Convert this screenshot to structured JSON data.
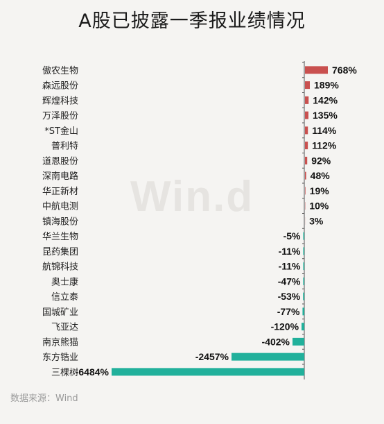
{
  "title": "A股已披露一季报业绩情况",
  "watermark": "Win.d",
  "source": "数据来源：Wind",
  "colors": {
    "positive": "#c9504f",
    "negative": "#21b09b",
    "axis": "#555555"
  },
  "chart_data": {
    "type": "bar",
    "orientation": "horizontal",
    "title": "A股已披露一季报业绩情况",
    "categories": [
      "傲农生物",
      "森远股份",
      "辉煌科技",
      "万泽股份",
      "*ST金山",
      "普利特",
      "道恩股份",
      "深南电路",
      "华正新材",
      "中航电测",
      "镇海股份",
      "华兰生物",
      "昆药集团",
      "航锦科技",
      "奥士康",
      "信立泰",
      "国城矿业",
      "飞亚达",
      "南京熊猫",
      "东方锆业",
      "三棵树"
    ],
    "values": [
      768,
      189,
      142,
      135,
      114,
      112,
      92,
      48,
      19,
      10,
      3,
      -5,
      -11,
      -11,
      -47,
      -53,
      -77,
      -120,
      -402,
      -2457,
      -6484
    ],
    "labels": [
      "768%",
      "189%",
      "142%",
      "135%",
      "114%",
      "112%",
      "92%",
      "48%",
      "19%",
      "10%",
      "3%",
      "-5%",
      "-11%",
      "-11%",
      "-47%",
      "-53%",
      "-77%",
      "-120%",
      "-402%",
      "-2457%",
      "-6484%"
    ],
    "unit": "%"
  }
}
